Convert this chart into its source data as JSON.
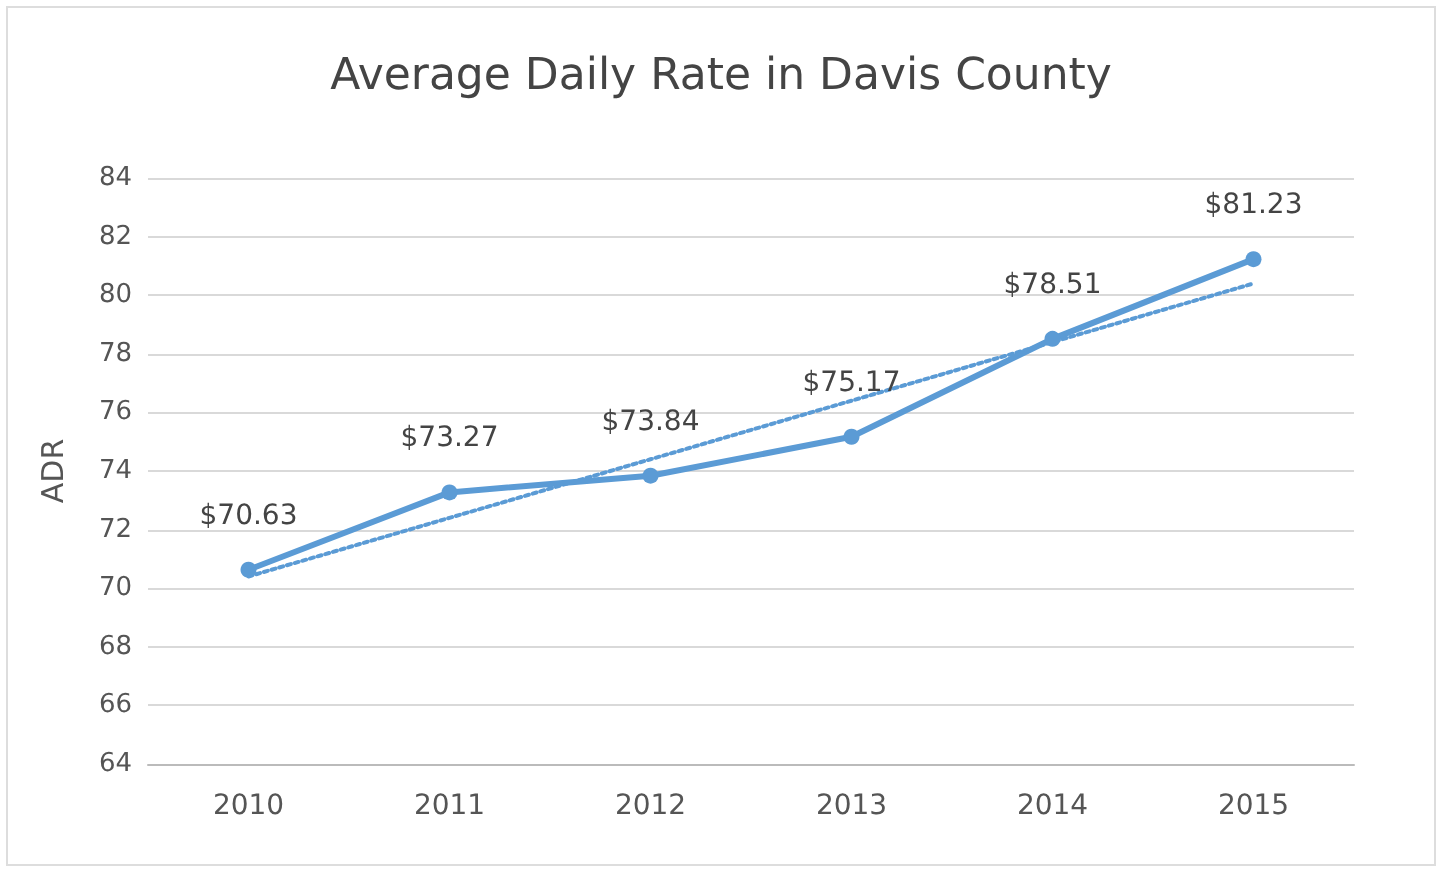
{
  "chart_data": {
    "type": "line",
    "title": "Average Daily Rate in Davis County",
    "ylabel": "ADR",
    "categories": [
      "2010",
      "2011",
      "2012",
      "2013",
      "2014",
      "2015"
    ],
    "series": [
      {
        "color": "#5b9bd5",
        "values": [
          70.63,
          73.27,
          73.84,
          75.17,
          78.51,
          81.23
        ],
        "value_labels": [
          "$70.63",
          "$73.27",
          "$73.84",
          "$75.17",
          "$78.51",
          "$81.23"
        ],
        "marker": "circle",
        "line_style": "solid"
      },
      {
        "type": "line",
        "color": "#5b9bd5",
        "values": [
          70.4,
          72.4,
          74.4,
          76.4,
          78.4,
          80.4
        ],
        "marker": "none",
        "line_style": "dotted"
      }
    ],
    "ylim": [
      64,
      84
    ],
    "yticks": [
      64,
      66,
      68,
      70,
      72,
      74,
      76,
      78,
      80,
      82,
      84
    ],
    "grid": "y"
  }
}
